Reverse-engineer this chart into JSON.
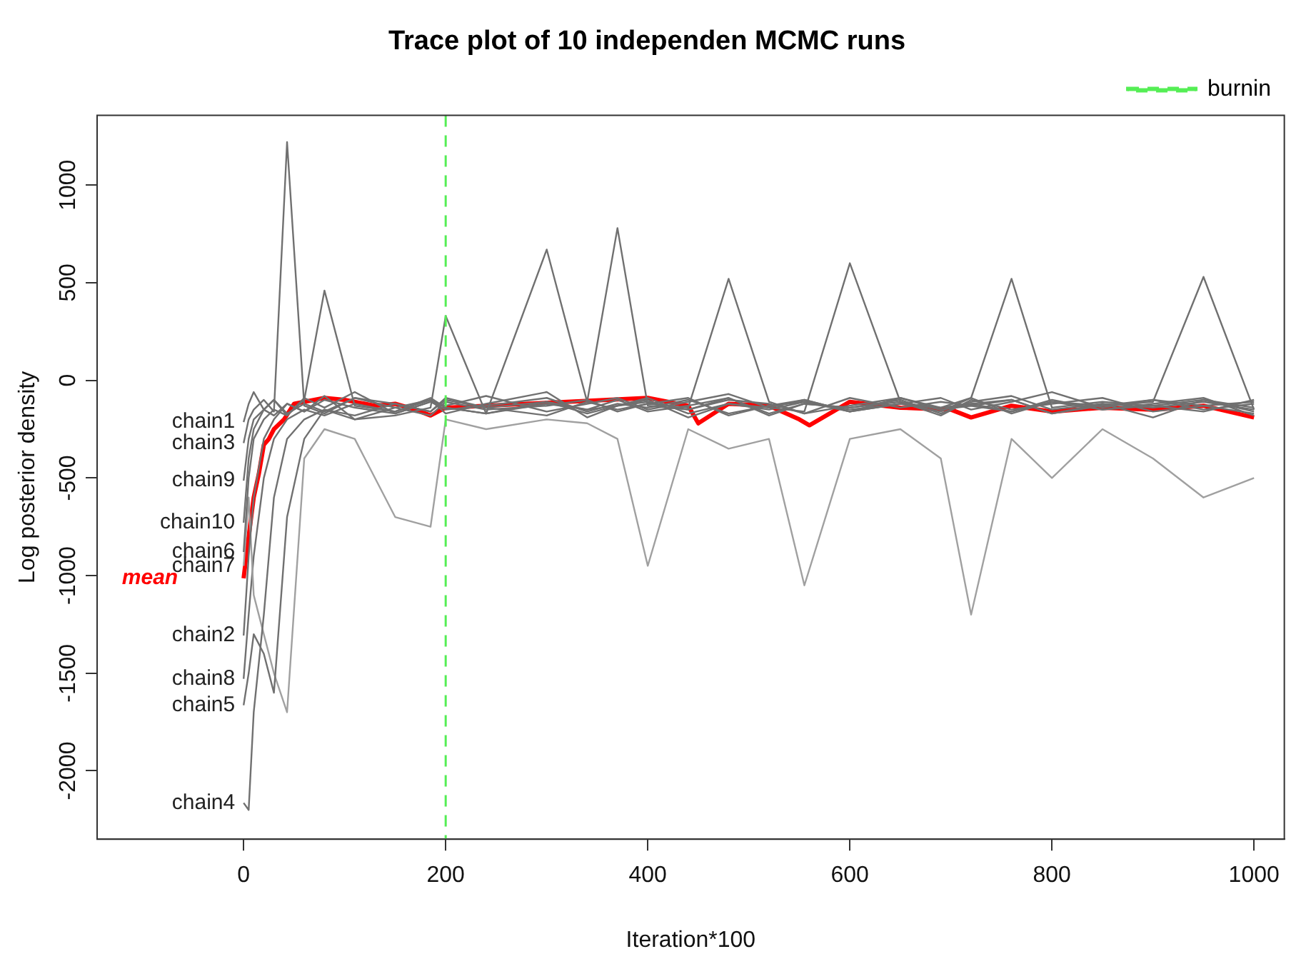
{
  "chart_data": {
    "type": "line",
    "title": "Trace plot of 10 independen MCMC runs",
    "xlabel": "Iteration*100",
    "ylabel": "Log posterior density",
    "xlim": [
      -145,
      1030
    ],
    "xticks": [
      0,
      200,
      400,
      600,
      800,
      1000
    ],
    "ylim": [
      -2350,
      1357
    ],
    "yticks": [
      -2000,
      -1500,
      -1000,
      -500,
      0,
      500,
      1000
    ],
    "grid": false,
    "legend": "top right",
    "line_style": "solid",
    "marker": "none",
    "ref_lines": [
      {
        "axis": "x",
        "value": 200,
        "label": "burnin",
        "color": "#55ee55",
        "line_style": "dashed"
      }
    ],
    "x": [
      0,
      5,
      10,
      20,
      30,
      43,
      60,
      80,
      110,
      150,
      185,
      200,
      240,
      300,
      340,
      370,
      400,
      440,
      480,
      520,
      555,
      600,
      650,
      690,
      720,
      760,
      800,
      850,
      900,
      950,
      1000
    ],
    "series": [
      {
        "name": "chain1",
        "color": "#707070",
        "values": [
          -214,
          -120,
          -60,
          -150,
          -100,
          -180,
          -90,
          -140,
          -60,
          -170,
          -110,
          -130,
          -80,
          -160,
          -120,
          -90,
          -150,
          -110,
          -70,
          -140,
          -100,
          -160,
          -120,
          -90,
          -150,
          -110,
          -60,
          -140,
          -100,
          -130,
          -170
        ]
      },
      {
        "name": "chain2",
        "color": "#707070",
        "values": [
          -1307,
          -900,
          -600,
          -300,
          -200,
          -120,
          -160,
          -80,
          -200,
          -140,
          -100,
          -170,
          -120,
          -60,
          -190,
          -130,
          -110,
          -150,
          -90,
          -180,
          -120,
          -140,
          -100,
          -170,
          -110,
          -80,
          -150,
          -120,
          -190,
          -100,
          -140
        ]
      },
      {
        "name": "chain3",
        "color": "#707070",
        "values": [
          -321,
          -200,
          -150,
          -100,
          -160,
          1220,
          -130,
          -170,
          -90,
          -120,
          -160,
          -100,
          -140,
          -180,
          -110,
          780,
          -130,
          -150,
          -100,
          -120,
          -170,
          -90,
          -140,
          -110,
          -130,
          -160,
          -100,
          -150,
          -120,
          -90,
          -180
        ]
      },
      {
        "name": "chain4",
        "color": "#707070",
        "values": [
          -2164,
          -2200,
          -1700,
          -1200,
          -600,
          -300,
          -200,
          -150,
          -180,
          -120,
          -160,
          -90,
          -140,
          -110,
          -170,
          -130,
          -100,
          -190,
          -120,
          -150,
          -110,
          -160,
          -90,
          -140,
          -120,
          -100,
          -170,
          -130,
          -110,
          530,
          -150
        ]
      },
      {
        "name": "chain5",
        "color": "#707070",
        "values": [
          -1664,
          -1500,
          -1300,
          -1400,
          -1600,
          -700,
          -300,
          -150,
          -200,
          -180,
          -140,
          330,
          -170,
          -120,
          -150,
          -100,
          -160,
          -130,
          -90,
          -170,
          -120,
          -140,
          -110,
          -180,
          -100,
          -150,
          -120,
          -90,
          -160,
          -130,
          -110
        ]
      },
      {
        "name": "chain6",
        "color": "#707070",
        "values": [
          -879,
          -500,
          -300,
          -200,
          -150,
          -180,
          -100,
          460,
          -130,
          -160,
          -90,
          -140,
          -170,
          670,
          -110,
          -150,
          -120,
          -90,
          -180,
          -130,
          -100,
          -160,
          -120,
          -140,
          -90,
          -170,
          -110,
          -150,
          -130,
          -100,
          -160
        ]
      },
      {
        "name": "chain7",
        "color": "#a0a0a0",
        "values": [
          -950,
          -600,
          -1100,
          -1300,
          -1500,
          -1700,
          -400,
          -250,
          -300,
          -700,
          -750,
          -200,
          -250,
          -200,
          -220,
          -300,
          -950,
          -250,
          -350,
          -300,
          -1050,
          -300,
          -250,
          -400,
          -1200,
          -300,
          -500,
          -250,
          -400,
          -600,
          -500
        ]
      },
      {
        "name": "chain8",
        "color": "#707070",
        "values": [
          -1529,
          -1200,
          -900,
          -500,
          -300,
          -200,
          -150,
          -180,
          -120,
          -160,
          -100,
          -140,
          -170,
          -110,
          -150,
          -130,
          -90,
          -170,
          -120,
          -140,
          -160,
          600,
          -110,
          -150,
          -130,
          -100,
          -170,
          -120,
          -140,
          -110,
          -150
        ]
      },
      {
        "name": "chain9",
        "color": "#707070",
        "values": [
          -514,
          -300,
          -200,
          -150,
          -100,
          -170,
          -120,
          -160,
          -90,
          -140,
          -180,
          -110,
          -150,
          -130,
          -100,
          -160,
          -120,
          -140,
          520,
          -110,
          -170,
          -130,
          -90,
          -150,
          -120,
          -160,
          -110,
          -130,
          -100,
          -150,
          -120
        ]
      },
      {
        "name": "chain10",
        "color": "#707070",
        "values": [
          -729,
          -400,
          -250,
          -150,
          -180,
          -120,
          -160,
          -100,
          -140,
          -170,
          -110,
          -150,
          -130,
          -90,
          -160,
          -120,
          -140,
          -100,
          -170,
          -130,
          -110,
          -150,
          -120,
          -160,
          -90,
          520,
          -140,
          -110,
          -130,
          -160,
          -100
        ]
      },
      {
        "name": "mean",
        "color": "#ff0000",
        "x": [
          0,
          5,
          10,
          15,
          20,
          25,
          30,
          40,
          50,
          60,
          80,
          100,
          130,
          150,
          170,
          185,
          200,
          240,
          280,
          320,
          360,
          400,
          440,
          450,
          480,
          520,
          550,
          560,
          600,
          650,
          700,
          720,
          760,
          800,
          850,
          900,
          950,
          1000
        ],
        "values": [
          -1014,
          -800,
          -600,
          -480,
          -330,
          -300,
          -250,
          -200,
          -120,
          -110,
          -90,
          -100,
          -130,
          -120,
          -150,
          -180,
          -140,
          -130,
          -120,
          -110,
          -100,
          -90,
          -130,
          -220,
          -120,
          -130,
          -200,
          -230,
          -110,
          -140,
          -150,
          -190,
          -130,
          -160,
          -140,
          -150,
          -130,
          -190
        ]
      }
    ]
  }
}
